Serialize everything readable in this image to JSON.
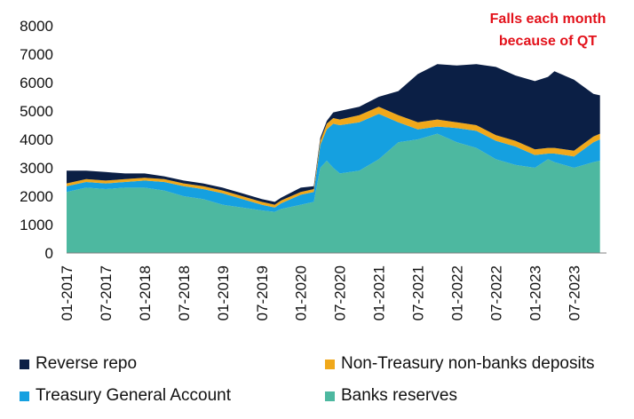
{
  "chart_data": {
    "type": "area",
    "stacked": true,
    "title": "",
    "xlabel": "",
    "ylabel": "",
    "ylim": [
      0,
      8000
    ],
    "yticks": [
      0,
      1000,
      2000,
      3000,
      4000,
      5000,
      6000,
      7000,
      8000
    ],
    "xlim": [
      "2017-01",
      "2023-12"
    ],
    "xticks": [
      "01-2017",
      "07-2017",
      "01-2018",
      "07-2018",
      "01-2019",
      "07-2019",
      "01-2020",
      "07-2020",
      "01-2021",
      "07-2021",
      "01-2022",
      "07-2022",
      "01-2023",
      "07-2023"
    ],
    "grid": false,
    "legend_position": "bottom",
    "annotation": {
      "lines": [
        "Falls each month",
        "because of QT"
      ],
      "color": "#e3121b"
    },
    "x": [
      "2017-01",
      "2017-04",
      "2017-07",
      "2017-10",
      "2018-01",
      "2018-04",
      "2018-07",
      "2018-10",
      "2019-01",
      "2019-04",
      "2019-07",
      "2019-09",
      "2019-10",
      "2020-01",
      "2020-03",
      "2020-04",
      "2020-05",
      "2020-06",
      "2020-07",
      "2020-10",
      "2021-01",
      "2021-04",
      "2021-07",
      "2021-10",
      "2022-01",
      "2022-04",
      "2022-07",
      "2022-10",
      "2023-01",
      "2023-03",
      "2023-04",
      "2023-07",
      "2023-10",
      "2023-11"
    ],
    "series": [
      {
        "name": "Banks reserves",
        "color": "#4db8a0",
        "values": [
          2150,
          2300,
          2250,
          2300,
          2300,
          2200,
          2000,
          1900,
          1700,
          1600,
          1500,
          1450,
          1550,
          1700,
          1800,
          3000,
          3250,
          3000,
          2800,
          2900,
          3300,
          3900,
          4000,
          4200,
          3900,
          3700,
          3300,
          3100,
          3000,
          3300,
          3200,
          3000,
          3200,
          3250
        ]
      },
      {
        "name": "Treasury General Account",
        "color": "#15a0e0",
        "values": [
          200,
          200,
          200,
          200,
          250,
          300,
          350,
          350,
          400,
          300,
          200,
          150,
          200,
          350,
          350,
          800,
          1100,
          1550,
          1700,
          1700,
          1600,
          700,
          350,
          250,
          500,
          600,
          650,
          650,
          450,
          200,
          300,
          400,
          700,
          750
        ]
      },
      {
        "name": "Non-Treasury non-banks deposits",
        "color": "#f0a81a",
        "values": [
          100,
          100,
          100,
          100,
          100,
          100,
          100,
          100,
          100,
          100,
          100,
          100,
          100,
          100,
          100,
          150,
          200,
          200,
          200,
          250,
          250,
          250,
          250,
          250,
          200,
          200,
          200,
          200,
          200,
          200,
          200,
          200,
          200,
          200
        ]
      },
      {
        "name": "Reverse repo",
        "color": "#0b1f45",
        "values": [
          450,
          300,
          300,
          200,
          150,
          100,
          100,
          100,
          100,
          100,
          100,
          100,
          100,
          150,
          100,
          100,
          100,
          200,
          300,
          300,
          350,
          850,
          1700,
          1950,
          2000,
          2150,
          2400,
          2300,
          2400,
          2500,
          2700,
          2500,
          1500,
          1350
        ]
      }
    ]
  },
  "legend": [
    {
      "name": "Reverse repo",
      "color": "#0b1f45"
    },
    {
      "name": "Non-Treasury non-banks deposits",
      "color": "#f0a81a"
    },
    {
      "name": "Treasury General Account",
      "color": "#15a0e0"
    },
    {
      "name": "Banks reserves",
      "color": "#4db8a0"
    }
  ]
}
